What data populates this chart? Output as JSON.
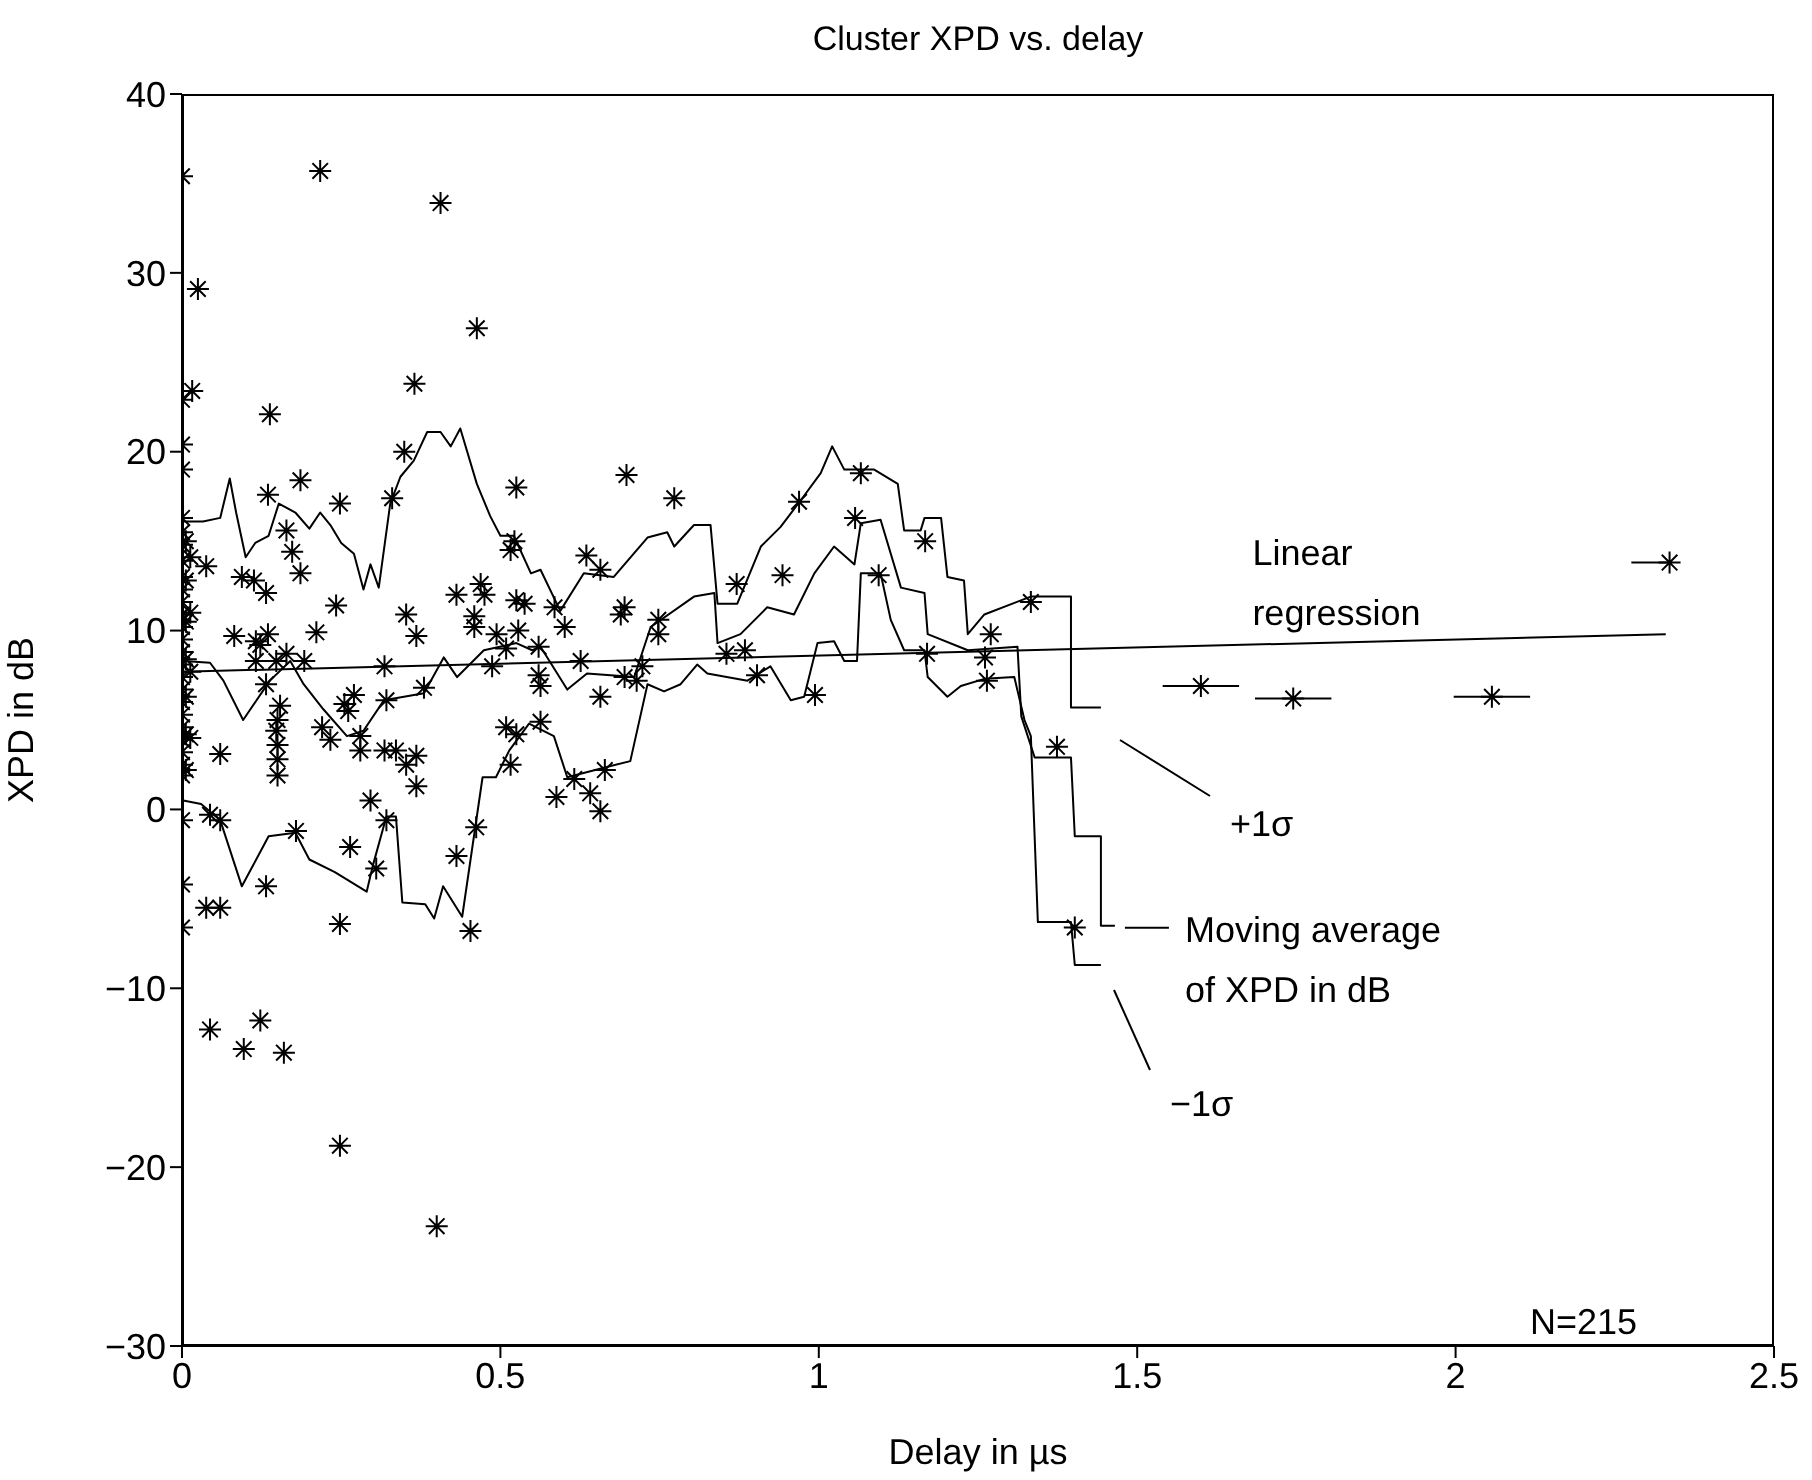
{
  "chart_data": {
    "type": "scatter",
    "title": "Cluster XPD vs. delay",
    "xlabel": "Delay in µs",
    "ylabel": "XPD in dB",
    "xlim": [
      0,
      2.5
    ],
    "xticks": [
      0,
      0.5,
      1,
      1.5,
      2,
      2.5
    ],
    "ylim": [
      -30,
      40
    ],
    "yticks": [
      {
        "value": -30,
        "label": "−30"
      },
      {
        "value": -20,
        "label": "−20"
      },
      {
        "value": -10,
        "label": "−10"
      },
      0,
      10,
      20,
      30,
      40
    ],
    "annotations": [
      {
        "text": "Linear regression",
        "x": 1.75,
        "y": 9.3
      },
      "+1σ",
      {
        "text": "Moving average of XPD in dB",
        "x": 1.465,
        "y": -6.5
      },
      "−1σ",
      "N=215"
    ],
    "series": [
      {
        "color": "#000000",
        "marker": "cross",
        "x": [
          0,
          0,
          0,
          0,
          0,
          0,
          0,
          0,
          0,
          0,
          0,
          0,
          0,
          0,
          0,
          0,
          0,
          0,
          0,
          0,
          0,
          0.006,
          0.006,
          0.006,
          0.006,
          0.006,
          0.006,
          0.006,
          0.013,
          0.013,
          0.013,
          0,
          0.217,
          0.406,
          0.025,
          0.463,
          0,
          0.016,
          0.138,
          0.365,
          0,
          0,
          0.349,
          0.186,
          0.135,
          0.525,
          0.33,
          0.248,
          0.164,
          0.173,
          0.186,
          0.094,
          0.113,
          0.132,
          0.038,
          0.013,
          0.522,
          0.516,
          0.242,
          0.431,
          0.469,
          0.475,
          0.352,
          0.211,
          0.368,
          0.082,
          0.116,
          0.123,
          0.135,
          0.459,
          0.459,
          0.494,
          0.528,
          0.509,
          0.525,
          0.538,
          0.585,
          0.601,
          0.56,
          0.164,
          0.148,
          0.192,
          0.116,
          0.132,
          0.318,
          0.487,
          0.56,
          0.563,
          0.38,
          0.154,
          0.27,
          0.255,
          0.261,
          0.321,
          0.22,
          0.563,
          0.509,
          0.148,
          0.15,
          0.15,
          0.15,
          0.15,
          0.06,
          0.233,
          0.28,
          0.28,
          0.318,
          0.336,
          0.352,
          0.368,
          0.368,
          0.525,
          0.516,
          0.588,
          0.296,
          0,
          0.044,
          0.06,
          0.179,
          0.321,
          0.462,
          0.264,
          0.132,
          0,
          0.305,
          0.431,
          0.038,
          0.06,
          0,
          0.248,
          0.453,
          0.044,
          0.123,
          0.097,
          0.16,
          0.248,
          0.4,
          0.698,
          0.773,
          0.635,
          0.657,
          0.695,
          0.689,
          0.748,
          0.748,
          0.871,
          0.943,
          0.969,
          1.066,
          1.057,
          1.094,
          1.167,
          1.333,
          1.27,
          1.261,
          1.264,
          1.17,
          0.626,
          0.695,
          0.714,
          0.723,
          0.855,
          0.884,
          0.903,
          0.994,
          0.657,
          1.374,
          1.402,
          0.657,
          0.641,
          0.664,
          0.616
        ],
        "values": [
          16.3,
          15.5,
          14.8,
          13.9,
          13.0,
          12.3,
          11.6,
          10.9,
          10.2,
          9.5,
          8.8,
          8.1,
          7.4,
          6.7,
          6.0,
          5.3,
          4.6,
          3.9,
          3.2,
          2.5,
          1.9,
          15.0,
          12.8,
          10.5,
          8.4,
          6.3,
          4.2,
          2.2,
          11.0,
          7.7,
          4.0,
          35.4,
          35.7,
          33.9,
          29.1,
          26.9,
          22.9,
          23.4,
          22.1,
          23.8,
          20.4,
          19.0,
          20.0,
          18.4,
          17.6,
          18.0,
          17.4,
          17.1,
          15.6,
          14.4,
          13.2,
          13.0,
          12.8,
          12.1,
          13.6,
          14.1,
          15.0,
          14.5,
          11.4,
          12.0,
          12.6,
          12.0,
          10.9,
          9.9,
          9.7,
          9.7,
          9.4,
          9.2,
          9.8,
          10.8,
          10.2,
          9.8,
          10.0,
          9.0,
          11.7,
          11.5,
          11.3,
          10.2,
          9.1,
          8.7,
          8.3,
          8.3,
          8.3,
          7.0,
          8.0,
          8.0,
          7.5,
          6.9,
          6.8,
          5.8,
          6.4,
          5.9,
          5.5,
          6.1,
          4.6,
          4.9,
          4.6,
          4.4,
          5.0,
          3.6,
          2.8,
          1.9,
          3.1,
          3.9,
          4.1,
          3.3,
          3.3,
          3.3,
          2.5,
          3.0,
          1.3,
          4.2,
          2.5,
          0.7,
          0.5,
          -0.6,
          -0.3,
          -0.6,
          -1.2,
          -0.6,
          -1.0,
          -2.1,
          -4.3,
          -4.2,
          -3.3,
          -2.6,
          -5.5,
          -5.5,
          -6.6,
          -6.4,
          -6.8,
          -12.3,
          -11.8,
          -13.4,
          -13.6,
          -18.8,
          -23.3,
          18.7,
          17.4,
          14.2,
          13.4,
          11.3,
          10.9,
          10.6,
          9.8,
          12.6,
          13.1,
          17.2,
          18.8,
          16.3,
          13.1,
          15.0,
          11.6,
          9.8,
          8.5,
          7.2,
          8.7,
          8.3,
          7.4,
          7.2,
          8.0,
          8.7,
          8.9,
          7.5,
          6.4,
          6.3,
          3.5,
          -6.6,
          -0.1,
          0.9,
          2.2,
          1.7
        ]
      },
      {
        "color": "#000000",
        "marker": "cross",
        "x": [
          1.6,
          1.745,
          2.057,
          2.336
        ],
        "values": [
          6.9,
          6.2,
          6.3,
          13.8
        ],
        "xerrors": [
          0.06,
          0.06,
          0.06,
          [
            2.276,
            2.336
          ]
        ]
      },
      {
        "type": "line",
        "color": "#000000",
        "marker": "none",
        "line_style": "solid",
        "x": [
          0.002,
          0.033,
          0.06,
          0.075,
          0.085,
          0.1,
          0.115,
          0.136,
          0.152,
          0.178,
          0.2,
          0.217,
          0.233,
          0.25,
          0.27,
          0.285,
          0.296,
          0.309,
          0.327,
          0.343,
          0.364,
          0.385,
          0.406,
          0.422,
          0.437,
          0.463,
          0.484,
          0.5,
          0.521,
          0.548,
          0.563,
          0.594,
          0.631,
          0.678,
          0.731,
          0.762,
          0.773,
          0.804,
          0.83,
          0.841,
          0.872,
          0.909,
          0.94,
          0.972,
          1.003,
          1.021,
          1.04,
          1.087,
          1.124,
          1.134,
          1.16,
          1.166,
          1.192,
          1.202,
          1.228,
          1.234,
          1.26,
          1.333,
          1.396,
          1.396,
          1.443
        ],
        "values": [
          16.1,
          16.1,
          16.3,
          18.5,
          16.6,
          14.1,
          14.9,
          15.3,
          17.1,
          16.6,
          15.7,
          16.6,
          15.9,
          14.9,
          14.3,
          12.3,
          13.7,
          12.4,
          17.1,
          18.6,
          19.5,
          21.1,
          21.1,
          20.3,
          21.3,
          18.2,
          16.4,
          15.3,
          15.3,
          13.2,
          13.4,
          11.1,
          13.2,
          13.0,
          15.2,
          15.5,
          14.7,
          15.9,
          15.9,
          11.5,
          11.5,
          14.7,
          15.8,
          17.3,
          18.8,
          20.3,
          19.0,
          19.0,
          18.2,
          15.6,
          15.6,
          16.3,
          16.3,
          13.0,
          12.8,
          9.8,
          10.9,
          11.9,
          11.9,
          5.7,
          5.7
        ]
      },
      {
        "type": "line",
        "color": "#000000",
        "marker": "none",
        "line_style": "solid",
        "x": [
          0.002,
          0.044,
          0.065,
          0.096,
          0.138,
          0.17,
          0.191,
          0.222,
          0.259,
          0.285,
          0.317,
          0.38,
          0.411,
          0.432,
          0.474,
          0.525,
          0.55,
          0.563,
          0.605,
          0.636,
          0.71,
          0.736,
          0.804,
          0.836,
          0.841,
          0.877,
          0.919,
          0.961,
          0.993,
          1.024,
          1.056,
          1.066,
          1.097,
          1.129,
          1.166,
          1.171,
          1.234,
          1.312,
          1.318,
          1.339,
          1.396,
          1.402,
          1.443,
          1.443,
          1.465
        ],
        "values": [
          8.3,
          8.2,
          7.2,
          5.0,
          7.2,
          8.3,
          7.0,
          5.6,
          4.1,
          4.4,
          6.1,
          6.5,
          8.5,
          7.4,
          8.9,
          9.3,
          8.9,
          9.1,
          6.7,
          7.6,
          7.4,
          10.2,
          11.9,
          12.1,
          9.3,
          9.8,
          11.3,
          10.9,
          13.2,
          14.7,
          13.7,
          16.0,
          16.2,
          12.4,
          12.1,
          9.8,
          8.9,
          9.1,
          5.2,
          2.9,
          2.9,
          -1.5,
          -1.5,
          -6.5,
          -6.5
        ]
      },
      {
        "type": "line",
        "color": "#000000",
        "marker": "none",
        "line_style": "solid",
        "x": [
          0.002,
          0.03,
          0.06,
          0.094,
          0.136,
          0.178,
          0.2,
          0.24,
          0.29,
          0.3,
          0.321,
          0.336,
          0.346,
          0.382,
          0.396,
          0.41,
          0.44,
          0.472,
          0.493,
          0.514,
          0.545,
          0.584,
          0.605,
          0.67,
          0.704,
          0.731,
          0.757,
          0.783,
          0.809,
          0.825,
          0.888,
          0.924,
          0.956,
          0.977,
          0.998,
          1.024,
          1.04,
          1.06,
          1.066,
          1.097,
          1.113,
          1.134,
          1.166,
          1.171,
          1.202,
          1.223,
          1.26,
          1.307,
          1.323,
          1.333,
          1.344,
          1.396,
          1.402,
          1.443
        ],
        "values": [
          0.5,
          0.3,
          -0.6,
          -4.3,
          -1.5,
          -1.3,
          -2.8,
          -3.5,
          -4.6,
          -3.1,
          -0.4,
          -0.4,
          -5.2,
          -5.3,
          -6.1,
          -4.3,
          -6.0,
          1.8,
          1.8,
          3.3,
          4.8,
          4.1,
          1.8,
          2.4,
          2.7,
          7.0,
          6.6,
          7.0,
          8.1,
          7.6,
          7.2,
          8.0,
          6.1,
          6.3,
          9.3,
          9.4,
          8.3,
          8.3,
          13.2,
          13.2,
          10.6,
          8.9,
          8.9,
          7.4,
          6.3,
          6.9,
          7.3,
          7.4,
          5.0,
          4.1,
          -6.3,
          -6.3,
          -8.7,
          -8.7
        ]
      },
      {
        "type": "line",
        "color": "#000000",
        "marker": "none",
        "line_style": "solid",
        "x": [
          0,
          2.33
        ],
        "values": [
          7.7,
          9.8
        ]
      }
    ]
  }
}
